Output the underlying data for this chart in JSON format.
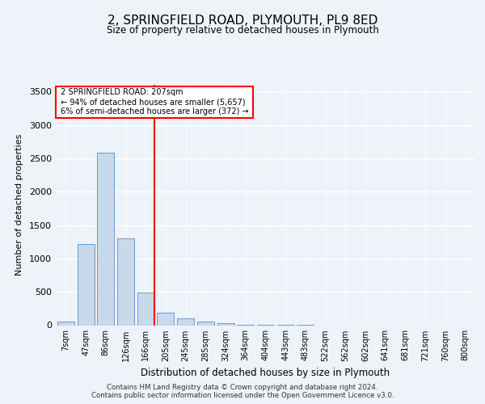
{
  "title1": "2, SPRINGFIELD ROAD, PLYMOUTH, PL9 8ED",
  "title2": "Size of property relative to detached houses in Plymouth",
  "xlabel": "Distribution of detached houses by size in Plymouth",
  "ylabel": "Number of detached properties",
  "categories": [
    "7sqm",
    "47sqm",
    "86sqm",
    "126sqm",
    "166sqm",
    "205sqm",
    "245sqm",
    "285sqm",
    "324sqm",
    "364sqm",
    "404sqm",
    "443sqm",
    "483sqm",
    "522sqm",
    "562sqm",
    "602sqm",
    "641sqm",
    "681sqm",
    "721sqm",
    "760sqm",
    "800sqm"
  ],
  "values": [
    50,
    1220,
    2580,
    1300,
    490,
    185,
    105,
    55,
    25,
    10,
    5,
    2,
    2,
    0,
    0,
    0,
    0,
    0,
    0,
    0,
    0
  ],
  "bar_color": "#c9d9ec",
  "bar_edge_color": "#6699cc",
  "annotation_text_line1": "2 SPRINGFIELD ROAD: 207sqm",
  "annotation_text_line2": "← 94% of detached houses are smaller (5,657)",
  "annotation_text_line3": "6% of semi-detached houses are larger (372) →",
  "vline_x": 4.43,
  "ylim": [
    0,
    3600
  ],
  "footer1": "Contains HM Land Registry data © Crown copyright and database right 2024.",
  "footer2": "Contains public sector information licensed under the Open Government Licence v3.0.",
  "bg_color": "#eef2f9"
}
